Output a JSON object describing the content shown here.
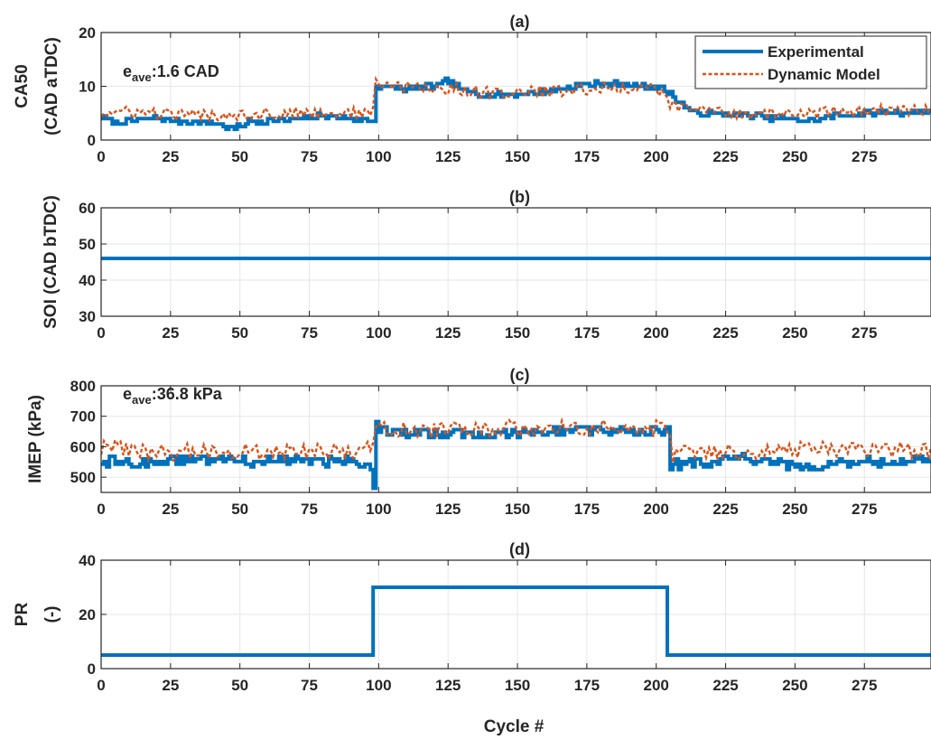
{
  "figure": {
    "xlabel": "Cycle #"
  },
  "legend": {
    "position": "top-right",
    "items": [
      {
        "label": "Experimental",
        "color": "#0072BD",
        "style": "solid"
      },
      {
        "label": "Dynamic Model",
        "color": "#D95319",
        "style": "dotted"
      }
    ]
  },
  "chart_data": [
    {
      "type": "line",
      "title": "(a)",
      "ylabel": [
        "CA50",
        "(CAD aTDC)"
      ],
      "xlim": [
        0,
        299
      ],
      "ylim": [
        0,
        20
      ],
      "xticks": [
        0,
        25,
        50,
        75,
        100,
        125,
        150,
        175,
        200,
        225,
        250,
        275
      ],
      "yticks": [
        0,
        10,
        20
      ],
      "grid": true,
      "annotation": {
        "prefix": "e",
        "sub": "ave",
        "text": ":1.6 CAD"
      },
      "series": [
        {
          "name": "Experimental",
          "segments": [
            [
              0,
              4.3
            ],
            [
              5,
              3.2
            ],
            [
              10,
              3.6
            ],
            [
              20,
              4.0
            ],
            [
              30,
              3.4
            ],
            [
              40,
              3.2
            ],
            [
              48,
              2.0
            ],
            [
              52,
              3.4
            ],
            [
              60,
              3.6
            ],
            [
              70,
              3.8
            ],
            [
              80,
              4.6
            ],
            [
              90,
              4.0
            ],
            [
              98,
              3.5
            ],
            [
              99,
              10.0
            ],
            [
              110,
              9.5
            ],
            [
              120,
              10.0
            ],
            [
              125,
              11.0
            ],
            [
              130,
              9.3
            ],
            [
              140,
              8.3
            ],
            [
              150,
              8.5
            ],
            [
              160,
              9.0
            ],
            [
              170,
              10.0
            ],
            [
              180,
              10.5
            ],
            [
              190,
              10.2
            ],
            [
              200,
              10.0
            ],
            [
              205,
              8.5
            ],
            [
              208,
              7.0
            ],
            [
              212,
              5.5
            ],
            [
              215,
              5.0
            ],
            [
              230,
              4.8
            ],
            [
              245,
              4.0
            ],
            [
              255,
              3.6
            ],
            [
              265,
              4.5
            ],
            [
              275,
              5.0
            ],
            [
              285,
              5.2
            ],
            [
              299,
              5.2
            ]
          ],
          "noise": 1.0
        },
        {
          "name": "Dynamic Model",
          "segments": [
            [
              0,
              5.0
            ],
            [
              10,
              5.2
            ],
            [
              30,
              4.6
            ],
            [
              50,
              4.8
            ],
            [
              70,
              5.0
            ],
            [
              90,
              5.0
            ],
            [
              98,
              5.2
            ],
            [
              99,
              10.5
            ],
            [
              110,
              9.8
            ],
            [
              125,
              9.5
            ],
            [
              140,
              8.8
            ],
            [
              160,
              9.0
            ],
            [
              180,
              9.6
            ],
            [
              200,
              9.8
            ],
            [
              205,
              6.5
            ],
            [
              212,
              5.8
            ],
            [
              230,
              5.0
            ],
            [
              250,
              4.8
            ],
            [
              270,
              5.4
            ],
            [
              299,
              5.6
            ]
          ],
          "noise": 2.2
        }
      ]
    },
    {
      "type": "line",
      "title": "(b)",
      "ylabel": [
        "SOI (CAD bTDC)"
      ],
      "xlim": [
        0,
        299
      ],
      "ylim": [
        30,
        60
      ],
      "xticks": [
        0,
        25,
        50,
        75,
        100,
        125,
        150,
        175,
        200,
        225,
        250,
        275
      ],
      "yticks": [
        30,
        40,
        50,
        60
      ],
      "grid": true,
      "series": [
        {
          "name": "Experimental",
          "segments": [
            [
              0,
              46
            ],
            [
              299,
              46
            ]
          ],
          "noise": 0
        }
      ]
    },
    {
      "type": "line",
      "title": "(c)",
      "ylabel": [
        "IMEP (kPa)"
      ],
      "xlim": [
        0,
        299
      ],
      "ylim": [
        450,
        800
      ],
      "xticks": [
        0,
        25,
        50,
        75,
        100,
        125,
        150,
        175,
        200,
        225,
        250,
        275
      ],
      "yticks": [
        500,
        600,
        700,
        800
      ],
      "grid": true,
      "annotation": {
        "prefix": "e",
        "sub": "ave",
        "text": ":36.8 kPa"
      },
      "series": [
        {
          "name": "Experimental",
          "segments": [
            [
              0,
              555
            ],
            [
              10,
              545
            ],
            [
              20,
              550
            ],
            [
              30,
              560
            ],
            [
              40,
              555
            ],
            [
              50,
              565
            ],
            [
              55,
              545
            ],
            [
              60,
              560
            ],
            [
              70,
              555
            ],
            [
              80,
              550
            ],
            [
              90,
              560
            ],
            [
              97,
              530
            ],
            [
              98,
              460
            ],
            [
              99,
              700
            ],
            [
              100,
              650
            ],
            [
              110,
              640
            ],
            [
              125,
              645
            ],
            [
              140,
              640
            ],
            [
              160,
              650
            ],
            [
              175,
              655
            ],
            [
              190,
              645
            ],
            [
              200,
              650
            ],
            [
              204,
              655
            ],
            [
              205,
              540
            ],
            [
              215,
              550
            ],
            [
              230,
              560
            ],
            [
              245,
              545
            ],
            [
              255,
              520
            ],
            [
              265,
              550
            ],
            [
              280,
              550
            ],
            [
              299,
              560
            ]
          ],
          "noise": 32
        },
        {
          "name": "Dynamic Model",
          "segments": [
            [
              0,
              600
            ],
            [
              20,
              580
            ],
            [
              40,
              585
            ],
            [
              60,
              580
            ],
            [
              80,
              585
            ],
            [
              98,
              590
            ],
            [
              99,
              660
            ],
            [
              120,
              655
            ],
            [
              140,
              660
            ],
            [
              160,
              662
            ],
            [
              180,
              660
            ],
            [
              200,
              660
            ],
            [
              205,
              640
            ],
            [
              206,
              575
            ],
            [
              220,
              580
            ],
            [
              240,
              585
            ],
            [
              260,
              590
            ],
            [
              280,
              590
            ],
            [
              299,
              585
            ]
          ],
          "noise": 55
        }
      ]
    },
    {
      "type": "line",
      "title": "(d)",
      "ylabel": [
        "PR",
        "(-)"
      ],
      "xlim": [
        0,
        299
      ],
      "ylim": [
        0,
        40
      ],
      "xticks": [
        0,
        25,
        50,
        75,
        100,
        125,
        150,
        175,
        200,
        225,
        250,
        275
      ],
      "yticks": [
        0,
        20,
        40
      ],
      "grid": true,
      "series": [
        {
          "name": "Experimental",
          "step": true,
          "points": [
            [
              0,
              5
            ],
            [
              98,
              5
            ],
            [
              98,
              30
            ],
            [
              204,
              30
            ],
            [
              204,
              5
            ],
            [
              299,
              5
            ]
          ]
        }
      ]
    }
  ]
}
